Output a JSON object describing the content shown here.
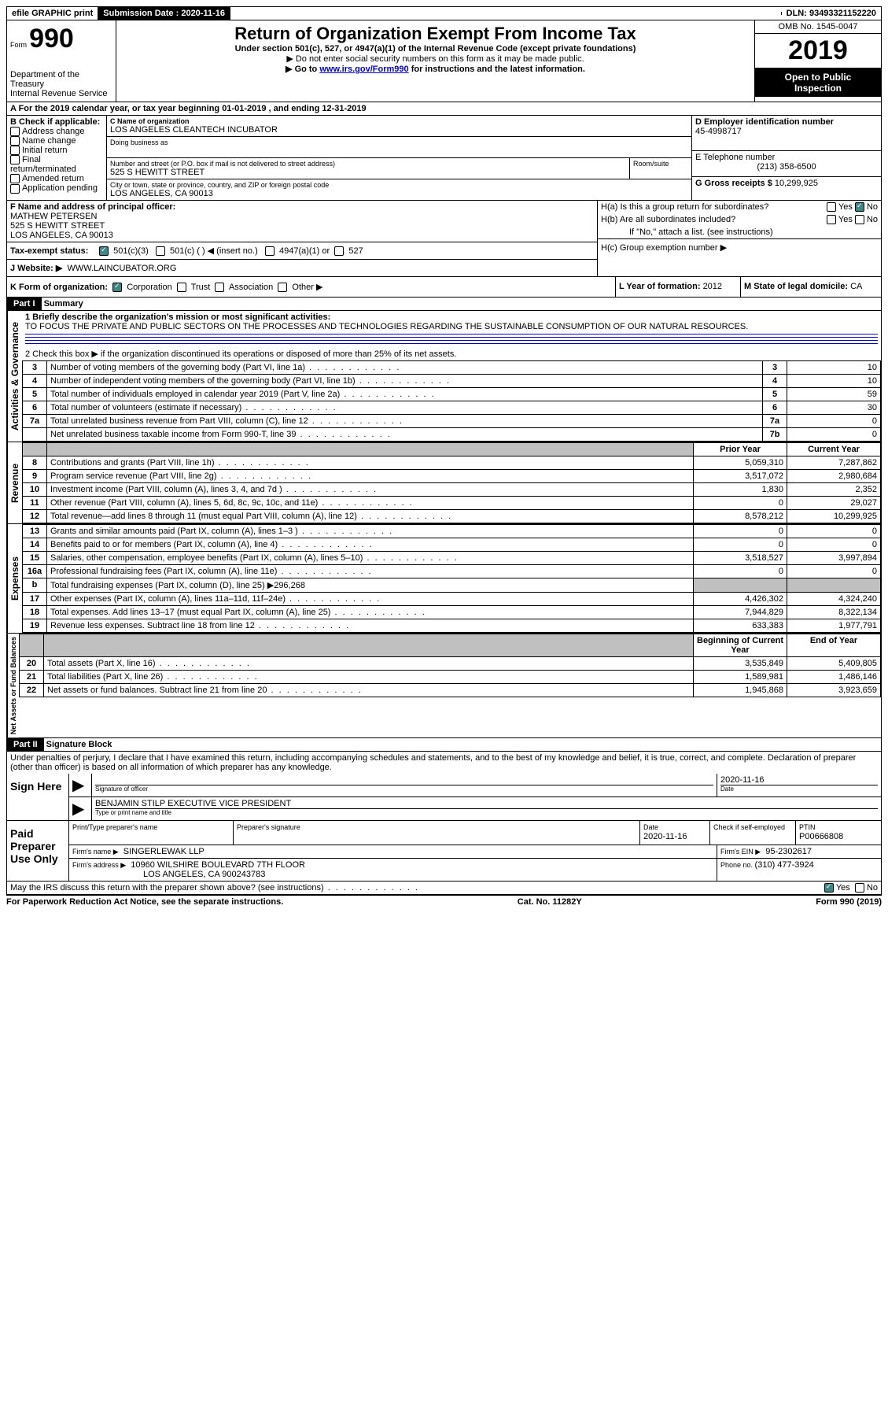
{
  "top_bar": {
    "efile": "efile GRAPHIC print",
    "sub_label": "Submission Date : ",
    "sub_date": "2020-11-16",
    "dln_label": "DLN: ",
    "dln": "93493321152220"
  },
  "header": {
    "form_prefix": "Form",
    "form_no": "990",
    "dept1": "Department of the Treasury",
    "dept2": "Internal Revenue Service",
    "title": "Return of Organization Exempt From Income Tax",
    "sub1": "Under section 501(c), 527, or 4947(a)(1) of the Internal Revenue Code (except private foundations)",
    "sub2": "▶ Do not enter social security numbers on this form as it may be made public.",
    "sub3_pre": "▶ Go to ",
    "sub3_link": "www.irs.gov/Form990",
    "sub3_post": " for instructions and the latest information.",
    "omb": "OMB No. 1545-0047",
    "year": "2019",
    "inspect1": "Open to Public",
    "inspect2": "Inspection"
  },
  "lineA": "A For the 2019 calendar year, or tax year beginning 01-01-2019   , and ending 12-31-2019",
  "boxB": {
    "label": "B Check if applicable:",
    "items": [
      "Address change",
      "Name change",
      "Initial return",
      "Final return/terminated",
      "Amended return",
      "Application pending"
    ]
  },
  "boxC": {
    "name_label": "C Name of organization",
    "name": "LOS ANGELES CLEANTECH INCUBATOR",
    "dba_label": "Doing business as",
    "addr_label": "Number and street (or P.O. box if mail is not delivered to street address)",
    "room_label": "Room/suite",
    "addr": "525 S HEWITT STREET",
    "city_label": "City or town, state or province, country, and ZIP or foreign postal code",
    "city": "LOS ANGELES, CA  90013"
  },
  "boxD": {
    "label": "D Employer identification number",
    "val": "45-4998717"
  },
  "boxE": {
    "label": "E Telephone number",
    "val": "(213) 358-6500"
  },
  "boxG": {
    "label": "G Gross receipts $ ",
    "val": "10,299,925"
  },
  "boxF": {
    "label": "F Name and address of principal officer:",
    "name": "MATHEW PETERSEN",
    "addr1": "525 S HEWITT STREET",
    "addr2": "LOS ANGELES, CA  90013"
  },
  "boxH": {
    "a_label": "H(a)  Is this a group return for subordinates?",
    "b_label": "H(b)  Are all subordinates included?",
    "b_note": "If \"No,\" attach a list. (see instructions)",
    "c_label": "H(c)  Group exemption number ▶",
    "yes": "Yes",
    "no": "No"
  },
  "boxI": {
    "label": "Tax-exempt status:",
    "opt1": "501(c)(3)",
    "opt2": "501(c) (  ) ◀ (insert no.)",
    "opt3": "4947(a)(1) or",
    "opt4": "527"
  },
  "boxJ": {
    "label": "J   Website: ▶",
    "val": "WWW.LAINCUBATOR.ORG"
  },
  "boxK": {
    "label": "K Form of organization:",
    "opts": [
      "Corporation",
      "Trust",
      "Association",
      "Other ▶"
    ]
  },
  "boxL": {
    "label": "L Year of formation: ",
    "val": "2012"
  },
  "boxM": {
    "label": "M State of legal domicile: ",
    "val": "CA"
  },
  "part1": {
    "hdr": "Part I",
    "title": "Summary",
    "line1_label": "1  Briefly describe the organization's mission or most significant activities:",
    "line1_text": "TO FOCUS THE PRIVATE AND PUBLIC SECTORS ON THE PROCESSES AND TECHNOLOGIES REGARDING THE SUSTAINABLE CONSUMPTION OF OUR NATURAL RESOURCES.",
    "line2": "2   Check this box ▶        if the organization discontinued its operations or disposed of more than 25% of its net assets.",
    "side_ag": "Activities & Governance",
    "side_rev": "Revenue",
    "side_exp": "Expenses",
    "side_net": "Net Assets or Fund Balances",
    "col_prior": "Prior Year",
    "col_curr": "Current Year",
    "col_boy": "Beginning of Current Year",
    "col_eoy": "End of Year",
    "rows_ag": [
      {
        "n": "3",
        "t": "Number of voting members of the governing body (Part VI, line 1a)",
        "box": "3",
        "v": "10"
      },
      {
        "n": "4",
        "t": "Number of independent voting members of the governing body (Part VI, line 1b)",
        "box": "4",
        "v": "10"
      },
      {
        "n": "5",
        "t": "Total number of individuals employed in calendar year 2019 (Part V, line 2a)",
        "box": "5",
        "v": "59"
      },
      {
        "n": "6",
        "t": "Total number of volunteers (estimate if necessary)",
        "box": "6",
        "v": "30"
      },
      {
        "n": "7a",
        "t": "Total unrelated business revenue from Part VIII, column (C), line 12",
        "box": "7a",
        "v": "0"
      },
      {
        "n": "",
        "t": "Net unrelated business taxable income from Form 990-T, line 39",
        "box": "7b",
        "v": "0"
      }
    ],
    "rows_rev": [
      {
        "n": "8",
        "t": "Contributions and grants (Part VIII, line 1h)",
        "p": "5,059,310",
        "c": "7,287,862"
      },
      {
        "n": "9",
        "t": "Program service revenue (Part VIII, line 2g)",
        "p": "3,517,072",
        "c": "2,980,684"
      },
      {
        "n": "10",
        "t": "Investment income (Part VIII, column (A), lines 3, 4, and 7d )",
        "p": "1,830",
        "c": "2,352"
      },
      {
        "n": "11",
        "t": "Other revenue (Part VIII, column (A), lines 5, 6d, 8c, 9c, 10c, and 11e)",
        "p": "0",
        "c": "29,027"
      },
      {
        "n": "12",
        "t": "Total revenue—add lines 8 through 11 (must equal Part VIII, column (A), line 12)",
        "p": "8,578,212",
        "c": "10,299,925"
      }
    ],
    "rows_exp": [
      {
        "n": "13",
        "t": "Grants and similar amounts paid (Part IX, column (A), lines 1–3 )",
        "p": "0",
        "c": "0"
      },
      {
        "n": "14",
        "t": "Benefits paid to or for members (Part IX, column (A), line 4)",
        "p": "0",
        "c": "0"
      },
      {
        "n": "15",
        "t": "Salaries, other compensation, employee benefits (Part IX, column (A), lines 5–10)",
        "p": "3,518,527",
        "c": "3,997,894"
      },
      {
        "n": "16a",
        "t": "Professional fundraising fees (Part IX, column (A), line 11e)",
        "p": "0",
        "c": "0"
      },
      {
        "n": "b",
        "t": "Total fundraising expenses (Part IX, column (D), line 25) ▶296,268",
        "shade": true
      },
      {
        "n": "17",
        "t": "Other expenses (Part IX, column (A), lines 11a–11d, 11f–24e)",
        "p": "4,426,302",
        "c": "4,324,240"
      },
      {
        "n": "18",
        "t": "Total expenses. Add lines 13–17 (must equal Part IX, column (A), line 25)",
        "p": "7,944,829",
        "c": "8,322,134"
      },
      {
        "n": "19",
        "t": "Revenue less expenses. Subtract line 18 from line 12",
        "p": "633,383",
        "c": "1,977,791"
      }
    ],
    "rows_net": [
      {
        "n": "20",
        "t": "Total assets (Part X, line 16)",
        "p": "3,535,849",
        "c": "5,409,805"
      },
      {
        "n": "21",
        "t": "Total liabilities (Part X, line 26)",
        "p": "1,589,981",
        "c": "1,486,146"
      },
      {
        "n": "22",
        "t": "Net assets or fund balances. Subtract line 21 from line 20",
        "p": "1,945,868",
        "c": "3,923,659"
      }
    ]
  },
  "part2": {
    "hdr": "Part II",
    "title": "Signature Block",
    "decl": "Under penalties of perjury, I declare that I have examined this return, including accompanying schedules and statements, and to the best of my knowledge and belief, it is true, correct, and complete. Declaration of preparer (other than officer) is based on all information of which preparer has any knowledge.",
    "sign_here": "Sign Here",
    "sig_officer_label": "Signature of officer",
    "sig_date": "2020-11-16",
    "date_label": "Date",
    "officer_name": "BENJAMIN STILP  EXECUTIVE VICE PRESIDENT",
    "officer_label": "Type or print name and title",
    "paid": "Paid Preparer Use Only",
    "prep_name_label": "Print/Type preparer's name",
    "prep_sig_label": "Preparer's signature",
    "prep_date_label": "Date",
    "prep_date": "2020-11-16",
    "check_label": "Check         if self-employed",
    "ptin_label": "PTIN",
    "ptin": "P00666808",
    "firm_name_label": "Firm's name    ▶",
    "firm_name": "SINGERLEWAK LLP",
    "firm_ein_label": "Firm's EIN ▶",
    "firm_ein": "95-2302617",
    "firm_addr_label": "Firm's address ▶",
    "firm_addr1": "10960 WILSHIRE BOULEVARD 7TH FLOOR",
    "firm_addr2": "LOS ANGELES, CA  900243783",
    "phone_label": "Phone no. ",
    "phone": "(310) 477-3924",
    "discuss": "May the IRS discuss this return with the preparer shown above? (see instructions)"
  },
  "footer": {
    "left": "For Paperwork Reduction Act Notice, see the separate instructions.",
    "mid": "Cat. No. 11282Y",
    "right": "Form 990 (2019)"
  }
}
